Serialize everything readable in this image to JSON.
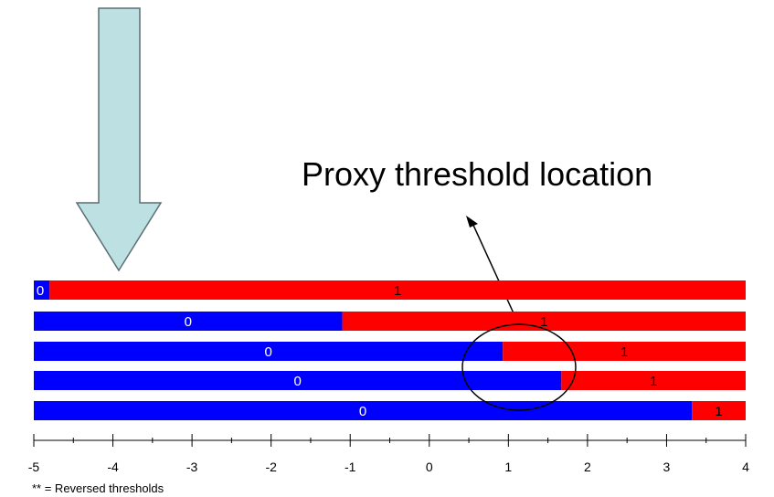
{
  "callout": {
    "text": "Proxy threshold location"
  },
  "footnote": {
    "text": "** = Reversed thresholds"
  },
  "colors": {
    "category_0": "#0000ff",
    "category_1": "#ff0000",
    "arrow_fill": "#bde0e2",
    "arrow_stroke": "#5a6f73"
  },
  "chart_data": {
    "type": "bar",
    "orientation": "horizontal-stacked",
    "title": "",
    "xlabel": "",
    "ylabel": "",
    "xlim": [
      -5,
      4
    ],
    "x_ticks": [
      -5,
      -4,
      -3,
      -2,
      -1,
      0,
      1,
      2,
      3,
      4
    ],
    "x_tick_labels": [
      "-5",
      "-4",
      "-3",
      "-2",
      "-1",
      "0",
      "1",
      "2",
      "3",
      "4"
    ],
    "series": [
      {
        "category_label": "0",
        "color": "#0000ff"
      },
      {
        "category_label": "1",
        "color": "#ff0000"
      }
    ],
    "rows": [
      {
        "threshold": -4.8,
        "label_0": "0",
        "label_1": "1"
      },
      {
        "threshold": -1.1,
        "label_0": "0",
        "label_1": "1"
      },
      {
        "threshold": 0.93,
        "label_0": "0",
        "label_1": "1"
      },
      {
        "threshold": 1.67,
        "label_0": "0",
        "label_1": "1"
      },
      {
        "threshold": 3.32,
        "label_0": "0",
        "label_1": "1"
      }
    ],
    "grid": false,
    "legend": "none"
  }
}
